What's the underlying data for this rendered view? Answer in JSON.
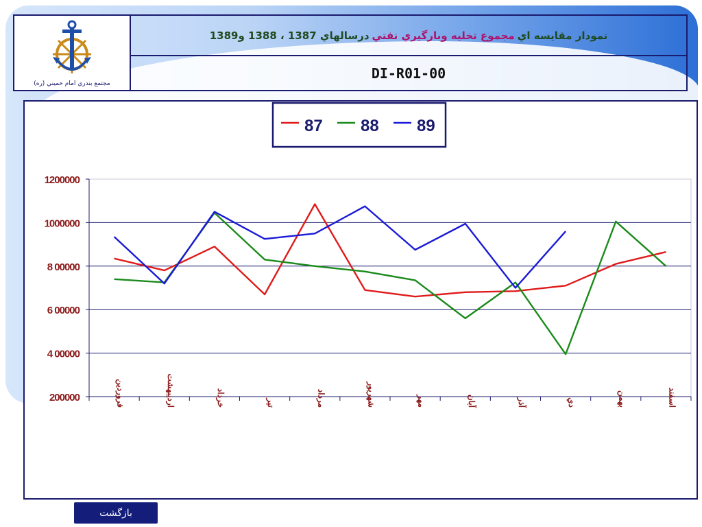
{
  "header": {
    "title_part1": "نمودار مقايسه اي",
    "title_part2": "مجموع تخليه وبارگيري نفتي",
    "title_part3": "درسالهاي 1387 ، 1388 و1389",
    "code": "DI-R01-00",
    "logo_caption": "مجتمع بندري امام خميني (ره)"
  },
  "footer": {
    "back_label": "بازگشت"
  },
  "colors": {
    "s87": "#e01a1a",
    "s88": "#1a8a1a",
    "s89": "#1a1ad8",
    "frame": "#1a1a6e",
    "month_label": "#8b1a1a"
  },
  "chart_data": {
    "type": "line",
    "categories": [
      "فروردين",
      "ارديبهشت",
      "خرداد",
      "تير",
      "مرداد",
      "شهريور",
      "مهر",
      "آبان",
      "آذر",
      "دي",
      "بهمن",
      "اسفند"
    ],
    "category_display": [
      "فروردين",
      "ارديبهشت",
      "خرداد",
      "تير",
      "مرداد",
      "شهريور",
      "مهر",
      "آبان",
      "آذر",
      "دي",
      "بهمن",
      "اسفند"
    ],
    "y_tick_values": [
      200000,
      400000,
      600000,
      800000,
      1000000,
      1200000
    ],
    "y_tick_labels": [
      "200000",
      "4 00000",
      "6 00000",
      "8 00000",
      "1000000",
      "1200000"
    ],
    "ylim": [
      200000,
      1200000
    ],
    "grid": true,
    "legend_position": "top-center",
    "series": [
      {
        "name": "87",
        "color": "#e01a1a",
        "values": [
          835000,
          780000,
          890000,
          670000,
          1085000,
          690000,
          660000,
          680000,
          685000,
          710000,
          810000,
          865000
        ]
      },
      {
        "name": "88",
        "color": "#1a8a1a",
        "values": [
          740000,
          725000,
          1045000,
          830000,
          800000,
          775000,
          735000,
          560000,
          725000,
          395000,
          1005000,
          800000
        ]
      },
      {
        "name": "89",
        "color": "#1a1ad8",
        "values": [
          935000,
          720000,
          1050000,
          925000,
          950000,
          1075000,
          875000,
          995000,
          700000,
          960000,
          null,
          null
        ]
      }
    ]
  }
}
